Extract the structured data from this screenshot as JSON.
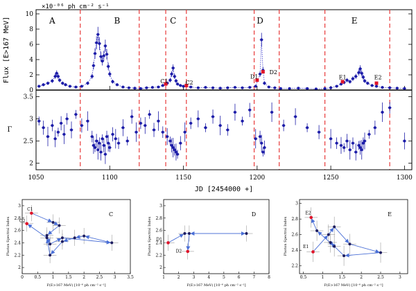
{
  "top": {
    "unit_label": "×10⁻⁰⁶ ph cm⁻² s⁻¹",
    "flux_ylabel": "Flux [E>167 MeV]",
    "index_ylabel": "Γ",
    "xlabel": "JD [2454000 +]",
    "x_ticks": [
      "1050",
      "1100",
      "1150",
      "1200",
      "1250",
      "1300"
    ],
    "flux_ticks": [
      "0",
      "2",
      "4",
      "6",
      "8",
      "10"
    ],
    "index_ticks": [
      "2",
      "2.5",
      "3",
      "3.5"
    ],
    "period_labels": [
      {
        "text": "A",
        "x": 1061
      },
      {
        "text": "B",
        "x": 1105
      },
      {
        "text": "C",
        "x": 1143
      },
      {
        "text": "D",
        "x": 1202
      },
      {
        "text": "E",
        "x": 1266
      }
    ],
    "annotations": [
      {
        "text": "C1",
        "x": 1137,
        "y": 0.9
      },
      {
        "text": "C2",
        "x": 1154,
        "y": 0.75
      },
      {
        "text": "D1",
        "x": 1198,
        "y": 1.5
      },
      {
        "text": "D2",
        "x": 1211,
        "y": 2.1
      },
      {
        "text": "E1",
        "x": 1258,
        "y": 1.4
      },
      {
        "text": "E2",
        "x": 1282,
        "y": 1.4
      }
    ]
  },
  "insets": [
    {
      "letter": "C",
      "ylabel": "Photon Spectral Index",
      "xlabel": "F(E>167 MeV) [10⁻⁶ ph cm⁻² s⁻¹]",
      "x_ticks": [
        "0",
        "0.5",
        "1",
        "1.5",
        "2",
        "2.5",
        "3",
        "3.5"
      ],
      "y_ticks": [
        "2",
        "2.2",
        "2.4",
        "2.6",
        "2.8",
        "3"
      ],
      "labels": [
        {
          "text": "C1",
          "x": 0.3,
          "y": 2.9
        },
        {
          "text": "C2",
          "x": 0.05,
          "y": 2.71
        }
      ]
    },
    {
      "letter": "D",
      "ylabel": "Photon Spectral Index",
      "xlabel": "F(E>167 MeV) [10⁻⁶ ph cm⁻² s⁻¹]",
      "x_ticks": [
        "1",
        "2",
        "3",
        "4",
        "5",
        "6",
        "7",
        "8"
      ],
      "y_ticks": [
        "2",
        "2.2",
        "2.4",
        "2.6",
        "2.8",
        "3"
      ],
      "labels": [
        {
          "text": "D1",
          "x": 0.8,
          "y": 2.41
        },
        {
          "text": "D2",
          "x": 2.1,
          "y": 2.22
        }
      ]
    },
    {
      "letter": "E",
      "ylabel": "Photon Spectral Index",
      "xlabel": "F(E>167 MeV) [10⁻⁶ ph cm⁻² s⁻¹]",
      "x_ticks": [
        "0.5",
        "1",
        "1.5",
        "2",
        "2.5",
        "3"
      ],
      "y_ticks": [
        "2.2",
        "2.4",
        "2.6",
        "2.8",
        "3"
      ],
      "labels": [
        {
          "text": "E2",
          "x": 0.66,
          "y": 2.84
        },
        {
          "text": "E1",
          "x": 0.6,
          "y": 2.41
        }
      ]
    }
  ],
  "chart_data": [
    {
      "type": "scatter",
      "title": "",
      "xlabel": "JD [2454000 +]",
      "ylabel": "Flux [E>167 MeV] (×10⁻⁶ ph cm⁻² s⁻¹)",
      "xlim": [
        1050,
        1305
      ],
      "ylim": [
        0,
        10
      ],
      "grid": false,
      "boundaries_jd": [
        1080,
        1120,
        1138,
        1152,
        1198,
        1215,
        1246,
        1290
      ],
      "series": [
        {
          "x": [
            1052,
            1055,
            1058,
            1061,
            1063,
            1064,
            1065,
            1066,
            1068,
            1070,
            1073,
            1077,
            1081,
            1085,
            1088,
            1089,
            1090,
            1091,
            1092,
            1093,
            1094,
            1095,
            1096,
            1097,
            1098,
            1099,
            1100,
            1102,
            1105,
            1109,
            1113,
            1117,
            1121,
            1125,
            1129,
            1133,
            1136,
            1139,
            1141,
            1142,
            1143,
            1144,
            1145,
            1146,
            1148,
            1150,
            1155,
            1160,
            1165,
            1170,
            1175,
            1180,
            1185,
            1190,
            1195,
            1199,
            1202,
            1203,
            1204,
            1205,
            1208,
            1212,
            1216,
            1222,
            1228,
            1234,
            1240,
            1246,
            1250,
            1254,
            1257,
            1259,
            1261,
            1263,
            1265,
            1267,
            1269,
            1270,
            1271,
            1272,
            1273,
            1275,
            1278,
            1281,
            1285,
            1290,
            1295,
            1300
          ],
          "y": [
            0.5,
            0.7,
            0.9,
            1.2,
            1.8,
            2.2,
            1.8,
            1.3,
            0.9,
            0.7,
            0.5,
            0.4,
            0.5,
            0.9,
            1.8,
            3.2,
            4.8,
            6.2,
            7.3,
            6.1,
            4.4,
            3.8,
            4.5,
            5.8,
            4.7,
            3.1,
            2.1,
            1.1,
            0.7,
            0.4,
            0.3,
            0.25,
            0.2,
            0.3,
            0.35,
            0.4,
            0.6,
            0.9,
            1.3,
            2.1,
            2.9,
            1.8,
            1.2,
            0.8,
            0.6,
            0.5,
            0.4,
            0.3,
            0.35,
            0.3,
            0.25,
            0.3,
            0.35,
            0.3,
            0.35,
            0.5,
            2.1,
            6.6,
            2.6,
            0.9,
            0.4,
            0.3,
            0.2,
            0.2,
            0.25,
            0.2,
            0.15,
            0.2,
            0.3,
            0.5,
            0.8,
            1.0,
            1.3,
            1.1,
            1.5,
            1.8,
            2.3,
            2.8,
            2.2,
            1.7,
            1.2,
            0.9,
            0.6,
            0.5,
            0.35,
            0.3,
            0.25,
            0.2
          ]
        },
        {
          "name": "highlighted",
          "x": [
            1138,
            1152,
            1200,
            1204,
            1258,
            1281
          ],
          "y": [
            0.8,
            0.6,
            1.3,
            2.4,
            1.1,
            0.9
          ]
        }
      ]
    },
    {
      "type": "scatter",
      "title": "",
      "xlabel": "JD [2454000 +]",
      "ylabel": "Γ",
      "xlim": [
        1050,
        1305
      ],
      "ylim": [
        1.85,
        3.65
      ],
      "grid": false,
      "series": [
        {
          "x": [
            1052,
            1055,
            1058,
            1061,
            1063,
            1065,
            1067,
            1069,
            1071,
            1074,
            1077,
            1081,
            1085,
            1088,
            1089,
            1090,
            1091,
            1092,
            1093,
            1094,
            1095,
            1096,
            1097,
            1098,
            1099,
            1100,
            1102,
            1104,
            1106,
            1109,
            1112,
            1115,
            1118,
            1121,
            1124,
            1127,
            1130,
            1133,
            1136,
            1139,
            1141,
            1142,
            1143,
            1144,
            1145,
            1146,
            1148,
            1151,
            1155,
            1160,
            1165,
            1170,
            1175,
            1180,
            1185,
            1190,
            1195,
            1199,
            1202,
            1203,
            1204,
            1205,
            1210,
            1218,
            1226,
            1234,
            1242,
            1250,
            1254,
            1257,
            1259,
            1261,
            1263,
            1265,
            1267,
            1269,
            1270,
            1271,
            1272,
            1273,
            1276,
            1280,
            1285,
            1290,
            1300
          ],
          "y": [
            2.95,
            2.8,
            2.6,
            2.85,
            2.55,
            2.7,
            2.9,
            2.65,
            3.0,
            2.75,
            3.1,
            2.85,
            2.95,
            2.6,
            2.4,
            2.35,
            2.5,
            2.3,
            2.45,
            2.25,
            2.55,
            2.4,
            2.2,
            2.6,
            2.45,
            2.35,
            2.65,
            2.55,
            2.45,
            2.8,
            2.5,
            3.05,
            2.7,
            2.9,
            2.85,
            3.1,
            2.75,
            2.95,
            2.7,
            2.6,
            2.5,
            2.4,
            2.35,
            2.3,
            2.25,
            2.2,
            2.45,
            2.7,
            2.9,
            3.0,
            2.8,
            3.05,
            2.85,
            2.75,
            3.15,
            2.95,
            3.2,
            2.55,
            2.6,
            2.45,
            2.25,
            2.35,
            3.15,
            2.85,
            3.05,
            2.8,
            2.7,
            2.55,
            2.45,
            2.4,
            2.35,
            2.5,
            2.3,
            2.45,
            2.25,
            2.4,
            2.35,
            2.3,
            2.45,
            2.5,
            2.65,
            2.8,
            3.15,
            3.25,
            2.5
          ]
        }
      ]
    },
    {
      "type": "scatter",
      "title": "C",
      "xlabel": "F(E>167 MeV) [10⁻⁶ ph cm⁻² s⁻¹]",
      "ylabel": "Photon Spectral Index",
      "xlim": [
        0,
        3.5
      ],
      "ylim": [
        1.9,
        3.1
      ],
      "path": {
        "x": [
          0.3,
          1.0,
          1.2,
          0.8,
          0.9,
          1.3,
          2.9,
          2.0,
          1.7,
          1.3,
          0.9,
          0.8,
          0.15
        ],
        "y": [
          2.88,
          2.73,
          2.68,
          2.52,
          2.38,
          2.48,
          2.4,
          2.51,
          2.48,
          2.42,
          2.2,
          2.48,
          2.71
        ]
      },
      "highlighted": {
        "x": [
          0.3,
          0.15
        ],
        "y": [
          2.88,
          2.71
        ]
      }
    },
    {
      "type": "scatter",
      "title": "D",
      "xlabel": "F(E>167 MeV) [10⁻⁶ ph cm⁻² s⁻¹]",
      "ylabel": "Photon Spectral Index",
      "xlim": [
        1,
        8
      ],
      "ylim": [
        1.9,
        3.1
      ],
      "path": {
        "x": [
          1.3,
          2.4,
          6.5,
          2.7,
          2.6
        ],
        "y": [
          2.4,
          2.55,
          2.55,
          2.55,
          2.26
        ]
      },
      "highlighted": {
        "x": [
          1.3,
          2.6
        ],
        "y": [
          2.4,
          2.26
        ]
      }
    },
    {
      "type": "scatter",
      "title": "E",
      "xlabel": "F(E>167 MeV) [10⁻⁶ ph cm⁻² s⁻¹]",
      "ylabel": "Photon Spectral Index",
      "xlim": [
        0.4,
        3.2
      ],
      "ylim": [
        2.1,
        3.05
      ],
      "path": {
        "x": [
          0.75,
          1.15,
          1.3,
          1.7,
          2.5,
          1.55,
          1.2,
          1.3,
          0.85,
          0.7
        ],
        "y": [
          2.38,
          2.6,
          2.7,
          2.48,
          2.37,
          2.33,
          2.5,
          2.45,
          2.65,
          2.82
        ]
      },
      "highlighted": {
        "x": [
          0.75,
          0.7
        ],
        "y": [
          2.38,
          2.82
        ]
      }
    }
  ],
  "colors": {
    "points": "#1c1ca8",
    "line": "#2020c8",
    "connector": "#4a6fd6",
    "highlight": "#e0152a",
    "boundary": "#e83a3a",
    "error_bar": "#888888"
  }
}
